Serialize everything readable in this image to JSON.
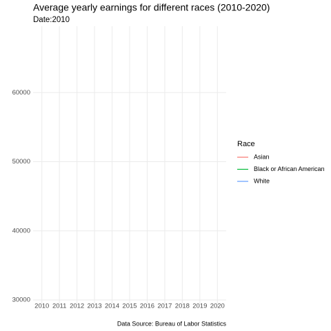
{
  "chart_data": {
    "type": "line",
    "title": "Average yearly earnings for different races (2010-2020)",
    "subtitle": "Date:2010",
    "caption": "Data Source: Bureau of Labor Statistics",
    "legend_title": "Race",
    "legend": "right",
    "grid": true,
    "x": [
      2010,
      2011,
      2012,
      2013,
      2014,
      2015,
      2016,
      2017,
      2018,
      2019,
      2020
    ],
    "series": [
      {
        "name": "Asian",
        "color": "#F8766D",
        "values": [
          null,
          null,
          null,
          null,
          null,
          null,
          null,
          null,
          null,
          null,
          null
        ]
      },
      {
        "name": "Black or African American",
        "color": "#00BA38",
        "values": [
          null,
          null,
          null,
          null,
          null,
          null,
          null,
          null,
          null,
          null,
          null
        ]
      },
      {
        "name": "White",
        "color": "#619CFF",
        "values": [
          null,
          null,
          null,
          null,
          null,
          null,
          null,
          null,
          null,
          null,
          null
        ]
      }
    ],
    "xlim": [
      2009.5,
      2020.5
    ],
    "xticks": [
      2010,
      2011,
      2012,
      2013,
      2014,
      2015,
      2016,
      2017,
      2018,
      2019,
      2020
    ],
    "ylim": [
      29500,
      69600
    ],
    "yticks": [
      30000,
      40000,
      50000,
      60000
    ]
  }
}
